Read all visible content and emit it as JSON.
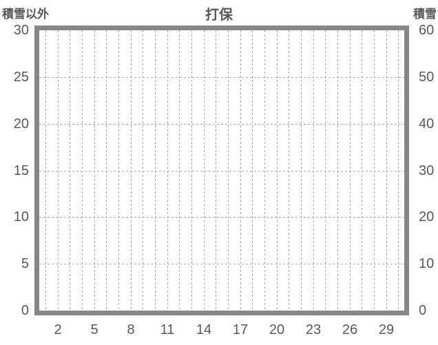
{
  "chart_data": {
    "type": "line",
    "title": "打保",
    "series": [],
    "note": "empty chart area - no data series plotted",
    "left_axis": {
      "title": "積雪以外",
      "min": 0,
      "max": 30,
      "tick_step": 5,
      "ticks": [
        30,
        25,
        20,
        15,
        10,
        5,
        0
      ]
    },
    "right_axis": {
      "title": "積雪",
      "min": 0,
      "max": 60,
      "tick_step": 10,
      "ticks": [
        60,
        50,
        40,
        30,
        20,
        10,
        0
      ]
    },
    "x_axis": {
      "min": 0.5,
      "max": 30.5,
      "gridline_step": 1,
      "gridline_days_first": 1,
      "gridline_days_last": 30,
      "tick_labels": [
        2,
        5,
        8,
        11,
        14,
        17,
        20,
        23,
        26,
        29
      ]
    },
    "grid": {
      "style": "dashed",
      "horizontal_at_left_values": [
        5,
        10,
        15,
        20,
        25
      ],
      "vertical_at_every_day": true
    },
    "legend_position": "none",
    "colors": {
      "frame": "#878787",
      "grid": "#a9a9a9",
      "text": "#595959",
      "background": "#ffffff"
    }
  }
}
